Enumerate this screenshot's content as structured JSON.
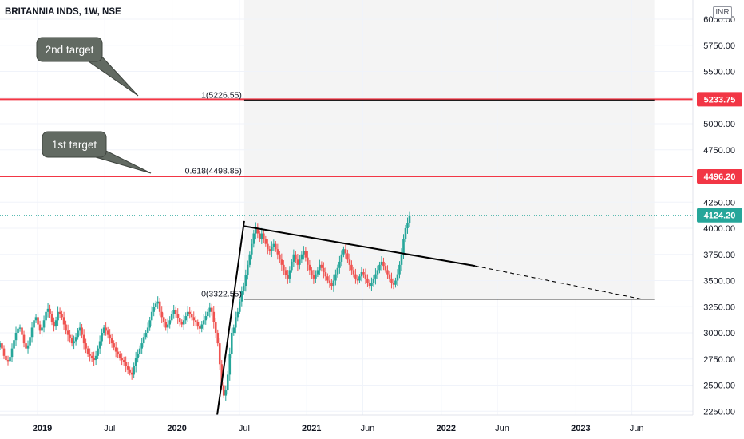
{
  "header": {
    "symbol_title": "BRITANNIA INDS, 1W, NSE",
    "currency": "INR"
  },
  "colors": {
    "bull": "#26a69a",
    "bear": "#ef5350",
    "target_line": "#f23645",
    "trend_line": "#000000",
    "grid": "#f0f3fa",
    "shaded_zone": "#f4f4f4",
    "axis_text": "#131722"
  },
  "chart_data": {
    "type": "candlestick",
    "timeframe": "1W",
    "x_axis": {
      "tick_labels": [
        "2019",
        "Jul",
        "2020",
        "Jul",
        "2021",
        "Jun",
        "2022",
        "Jun",
        "2023",
        "Jun"
      ]
    },
    "y_axis": {
      "scale": "linear",
      "range": [
        2200,
        6100
      ],
      "tick_labels": [
        "2250.00",
        "2500.00",
        "2750.00",
        "3000.00",
        "3250.00",
        "3500.00",
        "3750.00",
        "4000.00",
        "4250.00",
        "4750.00",
        "5000.00",
        "5500.00",
        "5750.00",
        "6000.00"
      ]
    },
    "price_labels": [
      {
        "value": 5233.75,
        "text": "5233.75",
        "color": "#f23645"
      },
      {
        "value": 4496.2,
        "text": "4496.20",
        "color": "#f23645"
      },
      {
        "value": 4124.2,
        "text": "4124.20",
        "color": "#26a69a"
      }
    ],
    "target_lines": [
      {
        "value": 5233.75
      },
      {
        "value": 4496.2
      }
    ],
    "current_price": 4124.2,
    "fib_levels": [
      {
        "ratio": 1,
        "price": 5226.55,
        "text": "1(5226.55)"
      },
      {
        "ratio": 0.618,
        "price": 4498.85,
        "text": "0.618(4498.85)"
      },
      {
        "ratio": 0,
        "price": 3322.55,
        "text": "0(3322.55)"
      }
    ],
    "fib_zone": {
      "from": "2020-07",
      "to": "2023-07"
    },
    "callouts": [
      {
        "text": "2nd target"
      },
      {
        "text": "1st target"
      }
    ],
    "trend_lines": [
      {
        "from": [
          "2020-05",
          2200
        ],
        "to": [
          "2020-07",
          4070
        ]
      },
      {
        "from": [
          "2020-07",
          4020
        ],
        "to": [
          "2022-04",
          3640
        ]
      },
      {
        "from": [
          "2022-04",
          3640
        ],
        "to": [
          "2023-07",
          3320
        ],
        "dashed": true
      }
    ],
    "close_series": [
      2900,
      2850,
      2780,
      2740,
      2730,
      2770,
      2850,
      2930,
      3000,
      3040,
      3050,
      2980,
      2900,
      2850,
      2880,
      2960,
      3050,
      3120,
      3150,
      3080,
      3020,
      3050,
      3120,
      3200,
      3230,
      3180,
      3100,
      3060,
      3120,
      3200,
      3180,
      3150,
      3080,
      3020,
      2980,
      2950,
      2900,
      2920,
      2960,
      3020,
      3050,
      2980,
      2900,
      2850,
      2800,
      2780,
      2760,
      2740,
      2780,
      2850,
      2920,
      3000,
      3050,
      3020,
      2980,
      2950,
      2900,
      2860,
      2820,
      2800,
      2760,
      2740,
      2720,
      2680,
      2650,
      2620,
      2600,
      2680,
      2760,
      2800,
      2850,
      2900,
      2960,
      3000,
      3050,
      3120,
      3200,
      3250,
      3280,
      3300,
      3200,
      3150,
      3100,
      3050,
      3080,
      3120,
      3180,
      3220,
      3180,
      3140,
      3100,
      3080,
      3120,
      3160,
      3200,
      3180,
      3150,
      3120,
      3100,
      3060,
      3040,
      3080,
      3120,
      3160,
      3200,
      3240,
      3200,
      3100,
      3000,
      2900,
      2700,
      2500,
      2400,
      2450,
      2600,
      2800,
      3000,
      3050,
      3150,
      3200,
      3300,
      3400,
      3450,
      3550,
      3650,
      3750,
      3850,
      3950,
      4000,
      3950,
      3900,
      3950,
      3900,
      3850,
      3800,
      3780,
      3820,
      3850,
      3800,
      3750,
      3700,
      3650,
      3600,
      3550,
      3520,
      3600,
      3680,
      3750,
      3700,
      3650,
      3700,
      3750,
      3780,
      3720,
      3650,
      3600,
      3550,
      3520,
      3560,
      3600,
      3650,
      3620,
      3580,
      3540,
      3500,
      3480,
      3450,
      3500,
      3560,
      3620,
      3680,
      3750,
      3800,
      3760,
      3700,
      3650,
      3600,
      3560,
      3520,
      3500,
      3540,
      3580,
      3560,
      3520,
      3480,
      3450,
      3480,
      3520,
      3560,
      3600,
      3650,
      3680,
      3640,
      3600,
      3560,
      3520,
      3480,
      3460,
      3500,
      3560,
      3650,
      3750,
      3900,
      4000,
      4050,
      4124.2
    ]
  }
}
